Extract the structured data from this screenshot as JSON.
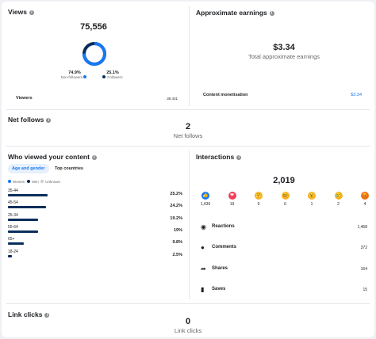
{
  "views": {
    "title": "Views",
    "total": "75,556",
    "non_followers_pct": "74.9%",
    "non_followers_label": "Non-followers",
    "followers_pct": "25.1%",
    "followers_label": "Followers",
    "donut": {
      "non_followers_fraction": 0.749,
      "followers_fraction": 0.251
    },
    "viewers_label": "Viewers",
    "viewers_value": "39,431"
  },
  "earnings": {
    "title": "Approximate earnings",
    "amount": "$3.34",
    "amount_label": "Total approximate earnings",
    "monetisation_label": "Content monetisation",
    "monetisation_value": "$3.34"
  },
  "net_follows": {
    "title": "Net follows",
    "value": "2",
    "label": "Net follows"
  },
  "who_viewed": {
    "title": "Who viewed your content",
    "tabs": [
      {
        "label": "Age and gender",
        "active": true
      },
      {
        "label": "Top countries",
        "active": false
      }
    ],
    "legend": [
      {
        "label": "Women",
        "color": "#1877f2"
      },
      {
        "label": "Men",
        "color": "#0a2e5c"
      },
      {
        "label": "Unknown",
        "color": "#c9ccd1"
      }
    ],
    "rows": [
      {
        "label": "35-44",
        "value": "25.2%",
        "fraction": 0.252
      },
      {
        "label": "45-54",
        "value": "24.2%",
        "fraction": 0.242
      },
      {
        "label": "25-34",
        "value": "19.2%",
        "fraction": 0.192
      },
      {
        "label": "55-64",
        "value": "19%",
        "fraction": 0.19
      },
      {
        "label": "65+",
        "value": "9.8%",
        "fraction": 0.098
      },
      {
        "label": "18-24",
        "value": "2.5%",
        "fraction": 0.025
      }
    ]
  },
  "interactions": {
    "title": "Interactions",
    "total": "2,019",
    "reactions": [
      {
        "name": "like-icon",
        "glyph": "👍",
        "color": "#1877f2",
        "count": "1,436"
      },
      {
        "name": "love-icon",
        "glyph": "❤",
        "color": "#f33e58",
        "count": "19"
      },
      {
        "name": "care-icon",
        "glyph": "🤗",
        "color": "#f7b125",
        "count": "0"
      },
      {
        "name": "haha-icon",
        "glyph": "😆",
        "color": "#f7b125",
        "count": "6"
      },
      {
        "name": "wow-icon",
        "glyph": "😮",
        "color": "#f7b125",
        "count": "1"
      },
      {
        "name": "sad-icon",
        "glyph": "😢",
        "color": "#f7b125",
        "count": "2"
      },
      {
        "name": "angry-icon",
        "glyph": "😡",
        "color": "#e9710f",
        "count": "4"
      }
    ],
    "items": [
      {
        "label": "Reactions",
        "value": "1,468",
        "icon": "reactions-icon"
      },
      {
        "label": "Comments",
        "value": "372",
        "icon": "comment-icon"
      },
      {
        "label": "Shares",
        "value": "164",
        "icon": "share-icon"
      },
      {
        "label": "Saves",
        "value": "15",
        "icon": "bookmark-icon"
      }
    ]
  },
  "link_clicks": {
    "title": "Link clicks",
    "value": "0",
    "label": "Link clicks"
  }
}
